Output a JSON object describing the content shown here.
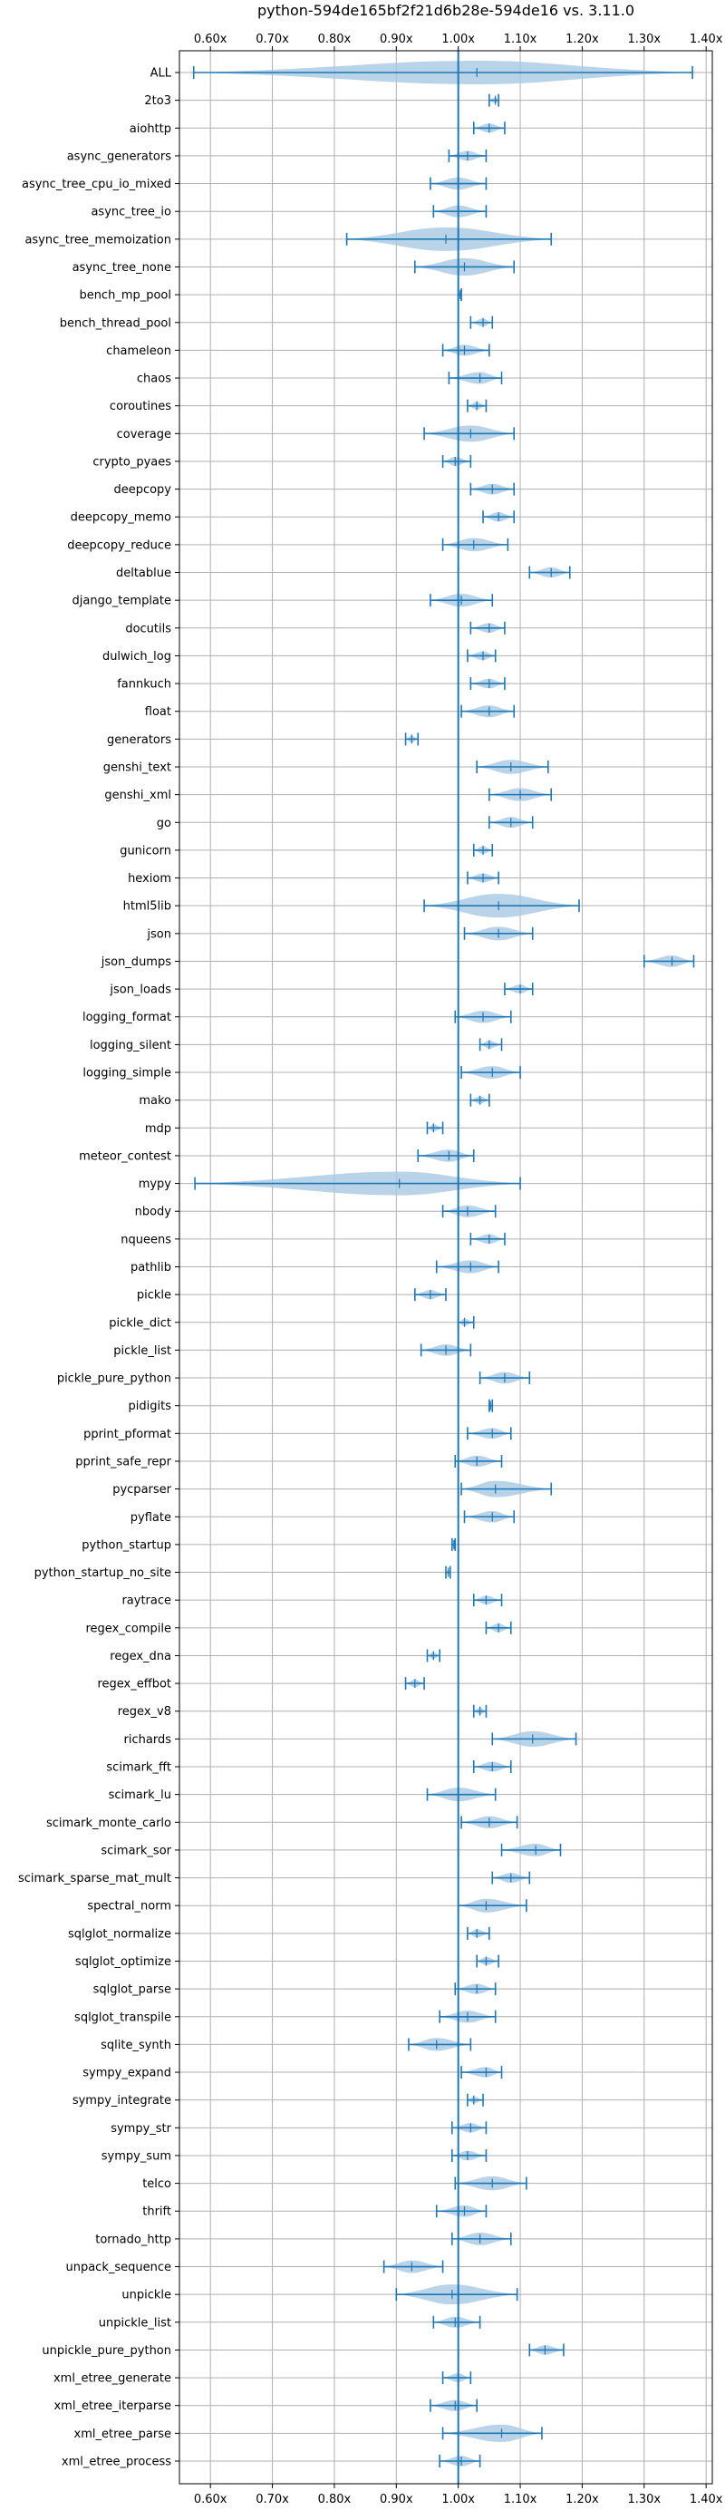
{
  "chart_data": {
    "type": "violin",
    "title": "python-594de165bf2f21d6b28e-594de16 vs. 3.11.0",
    "xlabel": "",
    "ylabel": "",
    "xlim": [
      0.55,
      1.41
    ],
    "xticks": [
      0.6,
      0.7,
      0.8,
      0.9,
      1.0,
      1.1,
      1.2,
      1.3,
      1.4
    ],
    "xtick_labels": [
      "0.60x",
      "0.70x",
      "0.80x",
      "0.90x",
      "1.00x",
      "1.10x",
      "1.20x",
      "1.30x",
      "1.40x"
    ],
    "reference_line": 1.0,
    "grid": true,
    "colors": {
      "violin": "#a8c8e4",
      "line": "#1f77b4",
      "grid": "#b0b0b0"
    },
    "benchmarks": [
      {
        "name": "ALL",
        "min": 0.573,
        "max": 1.378,
        "median": 1.03
      },
      {
        "name": "2to3",
        "min": 1.05,
        "max": 1.065,
        "median": 1.06
      },
      {
        "name": "aiohttp",
        "min": 1.025,
        "max": 1.075,
        "median": 1.05
      },
      {
        "name": "async_generators",
        "min": 0.985,
        "max": 1.045,
        "median": 1.015
      },
      {
        "name": "async_tree_cpu_io_mixed",
        "min": 0.955,
        "max": 1.045,
        "median": 1.0
      },
      {
        "name": "async_tree_io",
        "min": 0.96,
        "max": 1.045,
        "median": 1.0
      },
      {
        "name": "async_tree_memoization",
        "min": 0.82,
        "max": 1.15,
        "median": 0.98
      },
      {
        "name": "async_tree_none",
        "min": 0.93,
        "max": 1.09,
        "median": 1.01
      },
      {
        "name": "bench_mp_pool",
        "min": 1.0,
        "max": 1.005,
        "median": 1.003
      },
      {
        "name": "bench_thread_pool",
        "min": 1.02,
        "max": 1.055,
        "median": 1.04
      },
      {
        "name": "chameleon",
        "min": 0.975,
        "max": 1.05,
        "median": 1.01
      },
      {
        "name": "chaos",
        "min": 0.985,
        "max": 1.07,
        "median": 1.035
      },
      {
        "name": "coroutines",
        "min": 1.015,
        "max": 1.045,
        "median": 1.03
      },
      {
        "name": "coverage",
        "min": 0.945,
        "max": 1.09,
        "median": 1.02
      },
      {
        "name": "crypto_pyaes",
        "min": 0.975,
        "max": 1.02,
        "median": 0.995
      },
      {
        "name": "deepcopy",
        "min": 1.02,
        "max": 1.09,
        "median": 1.055
      },
      {
        "name": "deepcopy_memo",
        "min": 1.04,
        "max": 1.09,
        "median": 1.065
      },
      {
        "name": "deepcopy_reduce",
        "min": 0.975,
        "max": 1.08,
        "median": 1.025
      },
      {
        "name": "deltablue",
        "min": 1.115,
        "max": 1.18,
        "median": 1.15
      },
      {
        "name": "django_template",
        "min": 0.955,
        "max": 1.055,
        "median": 1.005
      },
      {
        "name": "docutils",
        "min": 1.02,
        "max": 1.075,
        "median": 1.05
      },
      {
        "name": "dulwich_log",
        "min": 1.015,
        "max": 1.06,
        "median": 1.04
      },
      {
        "name": "fannkuch",
        "min": 1.02,
        "max": 1.075,
        "median": 1.05
      },
      {
        "name": "float",
        "min": 1.005,
        "max": 1.09,
        "median": 1.05
      },
      {
        "name": "generators",
        "min": 0.915,
        "max": 0.935,
        "median": 0.925
      },
      {
        "name": "genshi_text",
        "min": 1.03,
        "max": 1.145,
        "median": 1.085
      },
      {
        "name": "genshi_xml",
        "min": 1.05,
        "max": 1.15,
        "median": 1.1
      },
      {
        "name": "go",
        "min": 1.05,
        "max": 1.12,
        "median": 1.085
      },
      {
        "name": "gunicorn",
        "min": 1.025,
        "max": 1.055,
        "median": 1.04
      },
      {
        "name": "hexiom",
        "min": 1.015,
        "max": 1.065,
        "median": 1.04
      },
      {
        "name": "html5lib",
        "min": 0.945,
        "max": 1.195,
        "median": 1.065
      },
      {
        "name": "json",
        "min": 1.01,
        "max": 1.12,
        "median": 1.065
      },
      {
        "name": "json_dumps",
        "min": 1.3,
        "max": 1.38,
        "median": 1.345
      },
      {
        "name": "json_loads",
        "min": 1.075,
        "max": 1.12,
        "median": 1.1
      },
      {
        "name": "logging_format",
        "min": 0.995,
        "max": 1.085,
        "median": 1.04
      },
      {
        "name": "logging_silent",
        "min": 1.035,
        "max": 1.07,
        "median": 1.05
      },
      {
        "name": "logging_simple",
        "min": 1.005,
        "max": 1.1,
        "median": 1.055
      },
      {
        "name": "mako",
        "min": 1.02,
        "max": 1.05,
        "median": 1.035
      },
      {
        "name": "mdp",
        "min": 0.95,
        "max": 0.975,
        "median": 0.96
      },
      {
        "name": "meteor_contest",
        "min": 0.935,
        "max": 1.025,
        "median": 0.985
      },
      {
        "name": "mypy",
        "min": 0.575,
        "max": 1.1,
        "median": 0.905
      },
      {
        "name": "nbody",
        "min": 0.975,
        "max": 1.06,
        "median": 1.015
      },
      {
        "name": "nqueens",
        "min": 1.02,
        "max": 1.075,
        "median": 1.05
      },
      {
        "name": "pathlib",
        "min": 0.965,
        "max": 1.065,
        "median": 1.02
      },
      {
        "name": "pickle",
        "min": 0.93,
        "max": 0.98,
        "median": 0.955
      },
      {
        "name": "pickle_dict",
        "min": 1.0,
        "max": 1.025,
        "median": 1.01
      },
      {
        "name": "pickle_list",
        "min": 0.94,
        "max": 1.02,
        "median": 0.98
      },
      {
        "name": "pickle_pure_python",
        "min": 1.035,
        "max": 1.115,
        "median": 1.075
      },
      {
        "name": "pidigits",
        "min": 1.05,
        "max": 1.055,
        "median": 1.052
      },
      {
        "name": "pprint_pformat",
        "min": 1.015,
        "max": 1.085,
        "median": 1.055
      },
      {
        "name": "pprint_safe_repr",
        "min": 0.995,
        "max": 1.07,
        "median": 1.03
      },
      {
        "name": "pycparser",
        "min": 1.005,
        "max": 1.15,
        "median": 1.06
      },
      {
        "name": "pyflate",
        "min": 1.01,
        "max": 1.09,
        "median": 1.055
      },
      {
        "name": "python_startup",
        "min": 0.99,
        "max": 0.995,
        "median": 0.993
      },
      {
        "name": "python_startup_no_site",
        "min": 0.98,
        "max": 0.987,
        "median": 0.984
      },
      {
        "name": "raytrace",
        "min": 1.025,
        "max": 1.07,
        "median": 1.045
      },
      {
        "name": "regex_compile",
        "min": 1.045,
        "max": 1.085,
        "median": 1.065
      },
      {
        "name": "regex_dna",
        "min": 0.95,
        "max": 0.97,
        "median": 0.96
      },
      {
        "name": "regex_effbot",
        "min": 0.915,
        "max": 0.945,
        "median": 0.93
      },
      {
        "name": "regex_v8",
        "min": 1.025,
        "max": 1.045,
        "median": 1.035
      },
      {
        "name": "richards",
        "min": 1.055,
        "max": 1.19,
        "median": 1.12
      },
      {
        "name": "scimark_fft",
        "min": 1.025,
        "max": 1.085,
        "median": 1.055
      },
      {
        "name": "scimark_lu",
        "min": 0.95,
        "max": 1.06,
        "median": 1.0
      },
      {
        "name": "scimark_monte_carlo",
        "min": 1.005,
        "max": 1.095,
        "median": 1.05
      },
      {
        "name": "scimark_sor",
        "min": 1.07,
        "max": 1.165,
        "median": 1.125
      },
      {
        "name": "scimark_sparse_mat_mult",
        "min": 1.055,
        "max": 1.115,
        "median": 1.085
      },
      {
        "name": "spectral_norm",
        "min": 1.0,
        "max": 1.11,
        "median": 1.045
      },
      {
        "name": "sqlglot_normalize",
        "min": 1.015,
        "max": 1.05,
        "median": 1.03
      },
      {
        "name": "sqlglot_optimize",
        "min": 1.03,
        "max": 1.065,
        "median": 1.045
      },
      {
        "name": "sqlglot_parse",
        "min": 0.995,
        "max": 1.06,
        "median": 1.03
      },
      {
        "name": "sqlglot_transpile",
        "min": 0.97,
        "max": 1.06,
        "median": 1.015
      },
      {
        "name": "sqlite_synth",
        "min": 0.92,
        "max": 1.02,
        "median": 0.965
      },
      {
        "name": "sympy_expand",
        "min": 1.005,
        "max": 1.07,
        "median": 1.045
      },
      {
        "name": "sympy_integrate",
        "min": 1.015,
        "max": 1.04,
        "median": 1.025
      },
      {
        "name": "sympy_str",
        "min": 0.99,
        "max": 1.045,
        "median": 1.02
      },
      {
        "name": "sympy_sum",
        "min": 0.99,
        "max": 1.045,
        "median": 1.015
      },
      {
        "name": "telco",
        "min": 0.995,
        "max": 1.11,
        "median": 1.055
      },
      {
        "name": "thrift",
        "min": 0.965,
        "max": 1.045,
        "median": 1.01
      },
      {
        "name": "tornado_http",
        "min": 0.99,
        "max": 1.085,
        "median": 1.035
      },
      {
        "name": "unpack_sequence",
        "min": 0.88,
        "max": 0.975,
        "median": 0.925
      },
      {
        "name": "unpickle",
        "min": 0.9,
        "max": 1.095,
        "median": 0.99
      },
      {
        "name": "unpickle_list",
        "min": 0.96,
        "max": 1.035,
        "median": 0.995
      },
      {
        "name": "unpickle_pure_python",
        "min": 1.115,
        "max": 1.17,
        "median": 1.14
      },
      {
        "name": "xml_etree_generate",
        "min": 0.975,
        "max": 1.02,
        "median": 1.0
      },
      {
        "name": "xml_etree_iterparse",
        "min": 0.955,
        "max": 1.03,
        "median": 0.995
      },
      {
        "name": "xml_etree_parse",
        "min": 0.975,
        "max": 1.135,
        "median": 1.07
      },
      {
        "name": "xml_etree_process",
        "min": 0.97,
        "max": 1.035,
        "median": 1.005
      }
    ]
  }
}
